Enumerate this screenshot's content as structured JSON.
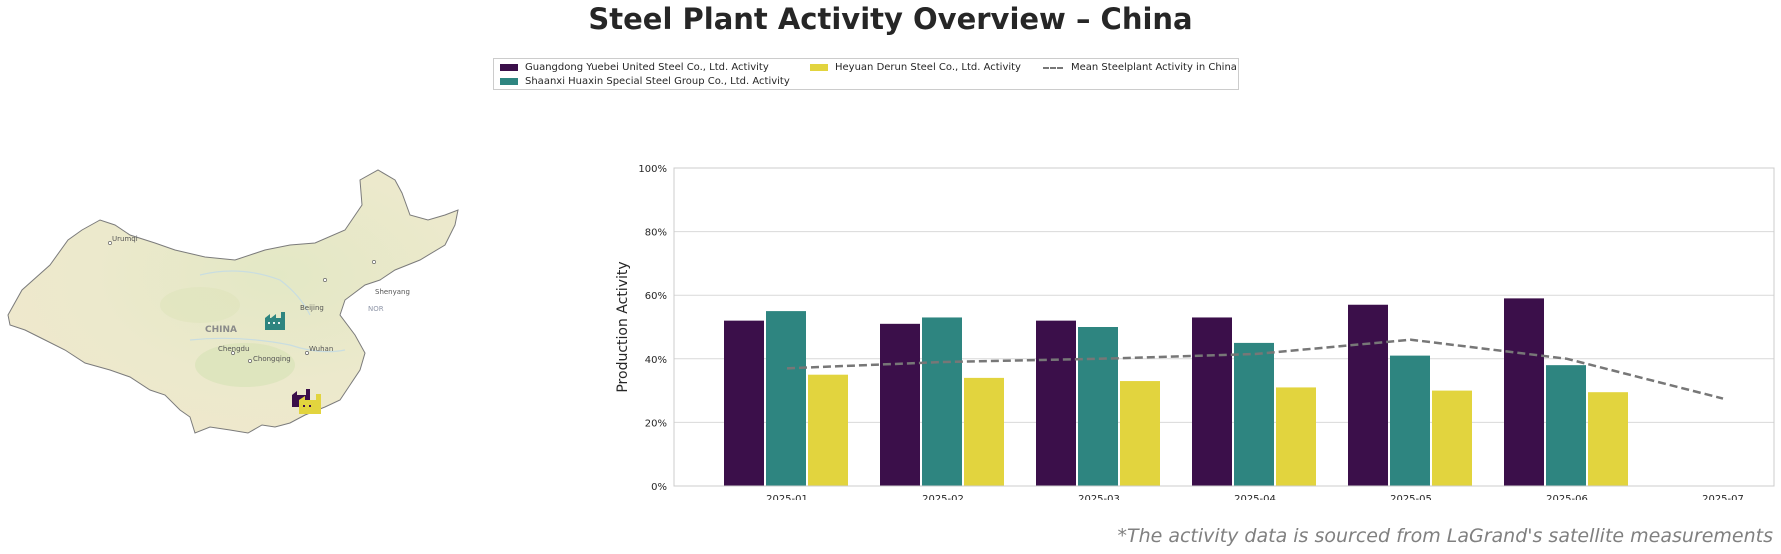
{
  "title": "Steel Plant Activity Overview – China",
  "legend": {
    "items": [
      {
        "label": "Guangdong Yuebei United Steel Co., Ltd. Activity",
        "color": "#3b0f4a"
      },
      {
        "label": "Shaanxi Huaxin Special Steel Group Co., Ltd. Activity",
        "color": "#2e8580"
      },
      {
        "label": "Heyuan Derun Steel Co., Ltd. Activity",
        "color": "#e2d43e"
      },
      {
        "label": "Mean Steelplant Activity in China",
        "color": "#777777"
      }
    ]
  },
  "map": {
    "country_label": "CHINA",
    "cities": [
      "Urumqi",
      "Beijing",
      "Shenyang",
      "Chengdu",
      "Chongqing",
      "Wuhan"
    ],
    "sea_label": "NOR",
    "markers": [
      {
        "name": "Shaanxi Huaxin Special Steel Group Co., Ltd.",
        "icon": "factory-icon",
        "color": "#2e8580"
      },
      {
        "name": "Guangdong Yuebei United Steel Co., Ltd.",
        "icon": "factory-icon",
        "color": "#3b0f4a"
      },
      {
        "name": "Heyuan Derun Steel Co., Ltd.",
        "icon": "factory-icon",
        "color": "#e2d43e"
      }
    ]
  },
  "chart_data": {
    "type": "bar",
    "categories": [
      "2025-01",
      "2025-02",
      "2025-03",
      "2025-04",
      "2025-05",
      "2025-06",
      "2025-07"
    ],
    "series": [
      {
        "name": "Guangdong Yuebei United Steel Co., Ltd. Activity",
        "type": "bar",
        "color": "#3b0f4a",
        "values": [
          52,
          51,
          52,
          53,
          57,
          59,
          null
        ]
      },
      {
        "name": "Shaanxi Huaxin Special Steel Group Co., Ltd. Activity",
        "type": "bar",
        "color": "#2e8580",
        "values": [
          55,
          53,
          50,
          45,
          41,
          38,
          null
        ]
      },
      {
        "name": "Heyuan Derun Steel Co., Ltd. Activity",
        "type": "bar",
        "color": "#e2d43e",
        "values": [
          35,
          34,
          33,
          31,
          30,
          29.5,
          null
        ]
      },
      {
        "name": "Mean Steelplant Activity in China",
        "type": "line",
        "style": "dashed",
        "color": "#777777",
        "values": [
          37,
          39,
          40,
          41.5,
          46,
          40,
          27.5
        ]
      }
    ],
    "ylabel": "Production Activity",
    "xlabel": "",
    "ylim": [
      0,
      100
    ],
    "yticks": [
      "0%",
      "20%",
      "40%",
      "60%",
      "80%",
      "100%"
    ],
    "grid": true
  },
  "footnote": "*The activity data is sourced from LaGrand's satellite measurements"
}
